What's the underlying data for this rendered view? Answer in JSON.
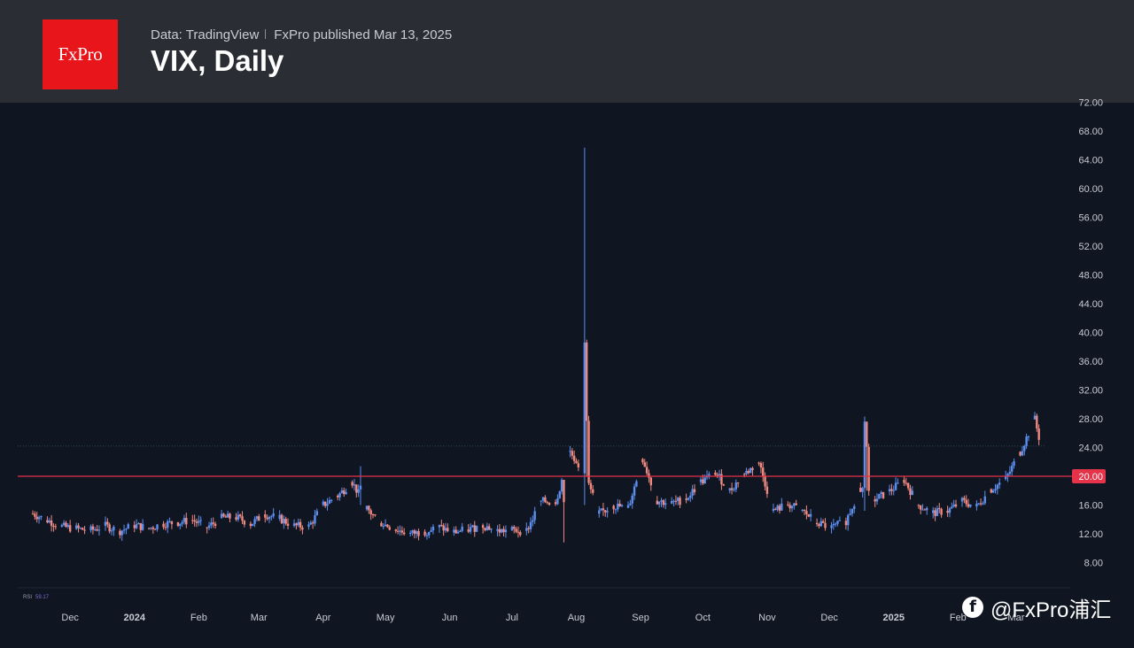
{
  "header": {
    "logo_text": "FxPro",
    "data_source": "Data: TradingView",
    "publisher": "FxPro published Mar 13, 2025",
    "title": "VIX, Daily",
    "brand_color": "#e8151b"
  },
  "watermark": {
    "text": "@FxPro浦汇",
    "icon": "facebook-icon"
  },
  "chart_data": {
    "type": "candlestick",
    "title": "VIX, Daily",
    "ylim": [
      4,
      72
    ],
    "y_ticks": [
      "72.00",
      "68.00",
      "64.00",
      "60.00",
      "56.00",
      "52.00",
      "48.00",
      "44.00",
      "40.00",
      "36.00",
      "32.00",
      "28.00",
      "24.00",
      "20.00",
      "16.00",
      "12.00",
      "8.00"
    ],
    "x_ticks": [
      "Dec",
      "2024",
      "Feb",
      "Mar",
      "Apr",
      "May",
      "Jun",
      "Jul",
      "Aug",
      "Sep",
      "Oct",
      "Nov",
      "Dec",
      "2025",
      "Feb",
      "Mar"
    ],
    "x_tick_dates": [
      "2023-12-01",
      "2024-01-01",
      "2024-02-01",
      "2024-03-01",
      "2024-04-01",
      "2024-05-01",
      "2024-06-01",
      "2024-07-01",
      "2024-08-01",
      "2024-09-01",
      "2024-10-01",
      "2024-11-01",
      "2024-12-01",
      "2025-01-01",
      "2025-02-01",
      "2025-03-01"
    ],
    "x_range": [
      "2023-11-10",
      "2025-03-13"
    ],
    "horizontal_line": {
      "value": 20.0,
      "label": "20.00",
      "color": "#e5334a"
    },
    "last_price_line": {
      "value": 24.2
    },
    "up_color": "#5b8ff0",
    "down_color": "#f08a80",
    "rsi_label": "RSI",
    "rsi_value": "59.17",
    "series": [
      {
        "name": "VIX",
        "points": [
          [
            "2023-11-13",
            14.8
          ],
          [
            "2023-11-20",
            13.9
          ],
          [
            "2023-11-27",
            13.0
          ],
          [
            "2023-12-04",
            12.7
          ],
          [
            "2023-12-11",
            12.5
          ],
          [
            "2023-12-18",
            13.1
          ],
          [
            "2023-12-25",
            12.4
          ],
          [
            "2024-01-01",
            13.2
          ],
          [
            "2024-01-08",
            12.8
          ],
          [
            "2024-01-15",
            13.4
          ],
          [
            "2024-01-22",
            13.6
          ],
          [
            "2024-01-29",
            13.9
          ],
          [
            "2024-02-05",
            12.9
          ],
          [
            "2024-02-12",
            14.2
          ],
          [
            "2024-02-19",
            14.3
          ],
          [
            "2024-02-26",
            13.4
          ],
          [
            "2024-03-04",
            14.7
          ],
          [
            "2024-03-11",
            14.1
          ],
          [
            "2024-03-18",
            13.1
          ],
          [
            "2024-03-25",
            13.0
          ],
          [
            "2024-04-01",
            16.0
          ],
          [
            "2024-04-08",
            17.3
          ],
          [
            "2024-04-15",
            19.2
          ],
          [
            "2024-04-22",
            15.4
          ],
          [
            "2024-04-29",
            13.5
          ],
          [
            "2024-05-06",
            12.6
          ],
          [
            "2024-05-13",
            12.0
          ],
          [
            "2024-05-20",
            12.3
          ],
          [
            "2024-05-27",
            12.9
          ],
          [
            "2024-06-03",
            12.2
          ],
          [
            "2024-06-10",
            12.6
          ],
          [
            "2024-06-17",
            13.2
          ],
          [
            "2024-06-24",
            12.4
          ],
          [
            "2024-07-01",
            12.5
          ],
          [
            "2024-07-08",
            12.4
          ],
          [
            "2024-07-15",
            16.5
          ],
          [
            "2024-07-22",
            16.4
          ],
          [
            "2024-07-29",
            23.4
          ],
          [
            "2024-08-05",
            20.4
          ],
          [
            "2024-08-12",
            14.8
          ],
          [
            "2024-08-19",
            15.9
          ],
          [
            "2024-08-26",
            15.6
          ],
          [
            "2024-09-02",
            22.4
          ],
          [
            "2024-09-09",
            16.6
          ],
          [
            "2024-09-16",
            16.2
          ],
          [
            "2024-09-23",
            16.9
          ],
          [
            "2024-09-30",
            19.2
          ],
          [
            "2024-10-07",
            20.5
          ],
          [
            "2024-10-14",
            18.0
          ],
          [
            "2024-10-21",
            20.3
          ],
          [
            "2024-10-28",
            21.9
          ],
          [
            "2024-11-04",
            15.2
          ],
          [
            "2024-11-11",
            16.1
          ],
          [
            "2024-11-18",
            15.2
          ],
          [
            "2024-11-25",
            13.5
          ],
          [
            "2024-12-02",
            12.8
          ],
          [
            "2024-12-09",
            13.8
          ],
          [
            "2024-12-16",
            18.4
          ],
          [
            "2024-12-23",
            16.8
          ],
          [
            "2024-12-30",
            17.9
          ],
          [
            "2025-01-06",
            19.5
          ],
          [
            "2025-01-13",
            16.0
          ],
          [
            "2025-01-20",
            14.9
          ],
          [
            "2025-01-27",
            15.2
          ],
          [
            "2025-02-03",
            16.5
          ],
          [
            "2025-02-10",
            15.8
          ],
          [
            "2025-02-17",
            18.2
          ],
          [
            "2025-02-24",
            19.6
          ],
          [
            "2025-03-03",
            23.4
          ],
          [
            "2025-03-10",
            27.9
          ],
          [
            "2025-03-13",
            24.2
          ]
        ]
      }
    ]
  }
}
